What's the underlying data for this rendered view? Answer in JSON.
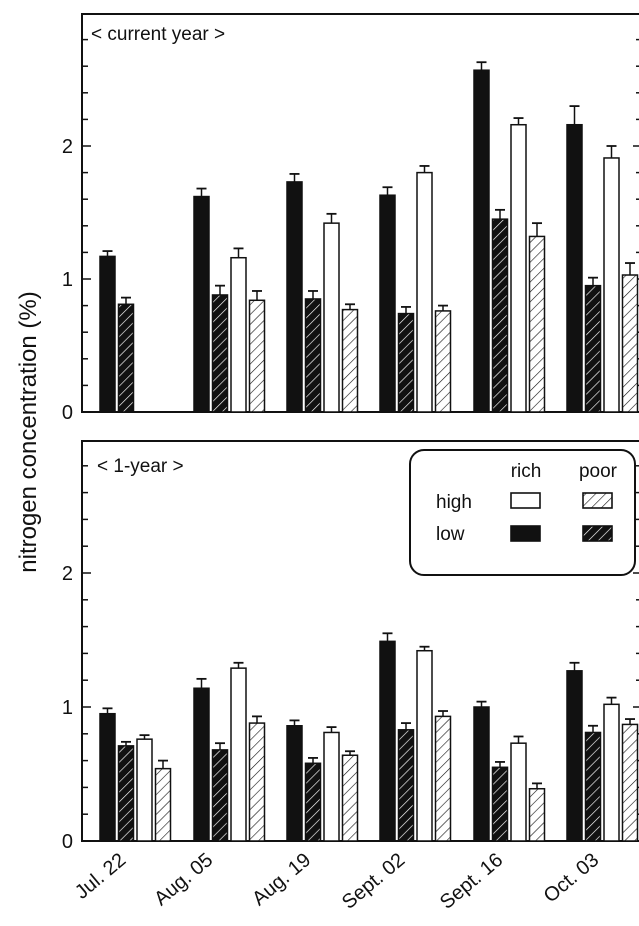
{
  "y_axis_label": "nitrogen concentration (%)",
  "legend": {
    "col_rich": "rich",
    "col_poor": "poor",
    "row_high": "high",
    "row_low": "low"
  },
  "chart_data": [
    {
      "type": "bar",
      "title": "< current year >",
      "categories": [
        "Jul. 22",
        "Aug. 05",
        "Aug. 19",
        "Sept. 02",
        "Sept. 16",
        "Oct. 03"
      ],
      "ylim": [
        0,
        3
      ],
      "yticks": [
        0,
        1,
        2
      ],
      "series": [
        {
          "name": "low rich",
          "fill": "#111111",
          "hatch": false,
          "values": [
            1.17,
            1.62,
            1.73,
            1.63,
            2.57,
            2.16
          ],
          "errors": [
            0.04,
            0.06,
            0.06,
            0.06,
            0.06,
            0.14
          ]
        },
        {
          "name": "low poor",
          "fill": "#111111",
          "hatch": true,
          "values": [
            0.81,
            0.88,
            0.85,
            0.74,
            1.45,
            0.95
          ],
          "errors": [
            0.05,
            0.07,
            0.06,
            0.05,
            0.07,
            0.06
          ]
        },
        {
          "name": "high rich",
          "fill": "#ffffff",
          "hatch": false,
          "values": [
            null,
            1.16,
            1.42,
            1.8,
            2.16,
            1.91
          ],
          "errors": [
            null,
            0.07,
            0.07,
            0.05,
            0.05,
            0.09
          ]
        },
        {
          "name": "high poor",
          "fill": "#ffffff",
          "hatch": true,
          "values": [
            null,
            0.84,
            0.77,
            0.76,
            1.32,
            1.03
          ],
          "errors": [
            null,
            0.07,
            0.04,
            0.04,
            0.1,
            0.09
          ]
        }
      ]
    },
    {
      "type": "bar",
      "title": "< 1-year >",
      "categories": [
        "Jul. 22",
        "Aug. 05",
        "Aug. 19",
        "Sept. 02",
        "Sept. 16",
        "Oct. 03"
      ],
      "ylim": [
        0,
        3
      ],
      "yticks": [
        0,
        1,
        2
      ],
      "series": [
        {
          "name": "low rich",
          "fill": "#111111",
          "hatch": false,
          "values": [
            0.95,
            1.14,
            0.86,
            1.49,
            1.0,
            1.27
          ],
          "errors": [
            0.04,
            0.07,
            0.04,
            0.06,
            0.04,
            0.06
          ]
        },
        {
          "name": "low poor",
          "fill": "#111111",
          "hatch": true,
          "values": [
            0.71,
            0.68,
            0.58,
            0.83,
            0.55,
            0.81
          ],
          "errors": [
            0.03,
            0.05,
            0.04,
            0.05,
            0.04,
            0.05
          ]
        },
        {
          "name": "high rich",
          "fill": "#ffffff",
          "hatch": false,
          "values": [
            0.76,
            1.29,
            0.81,
            1.42,
            0.73,
            1.02
          ],
          "errors": [
            0.03,
            0.04,
            0.04,
            0.03,
            0.05,
            0.05
          ]
        },
        {
          "name": "high poor",
          "fill": "#ffffff",
          "hatch": true,
          "values": [
            0.54,
            0.88,
            0.64,
            0.93,
            0.39,
            0.87
          ],
          "errors": [
            0.06,
            0.05,
            0.03,
            0.04,
            0.04,
            0.04
          ]
        }
      ]
    }
  ]
}
